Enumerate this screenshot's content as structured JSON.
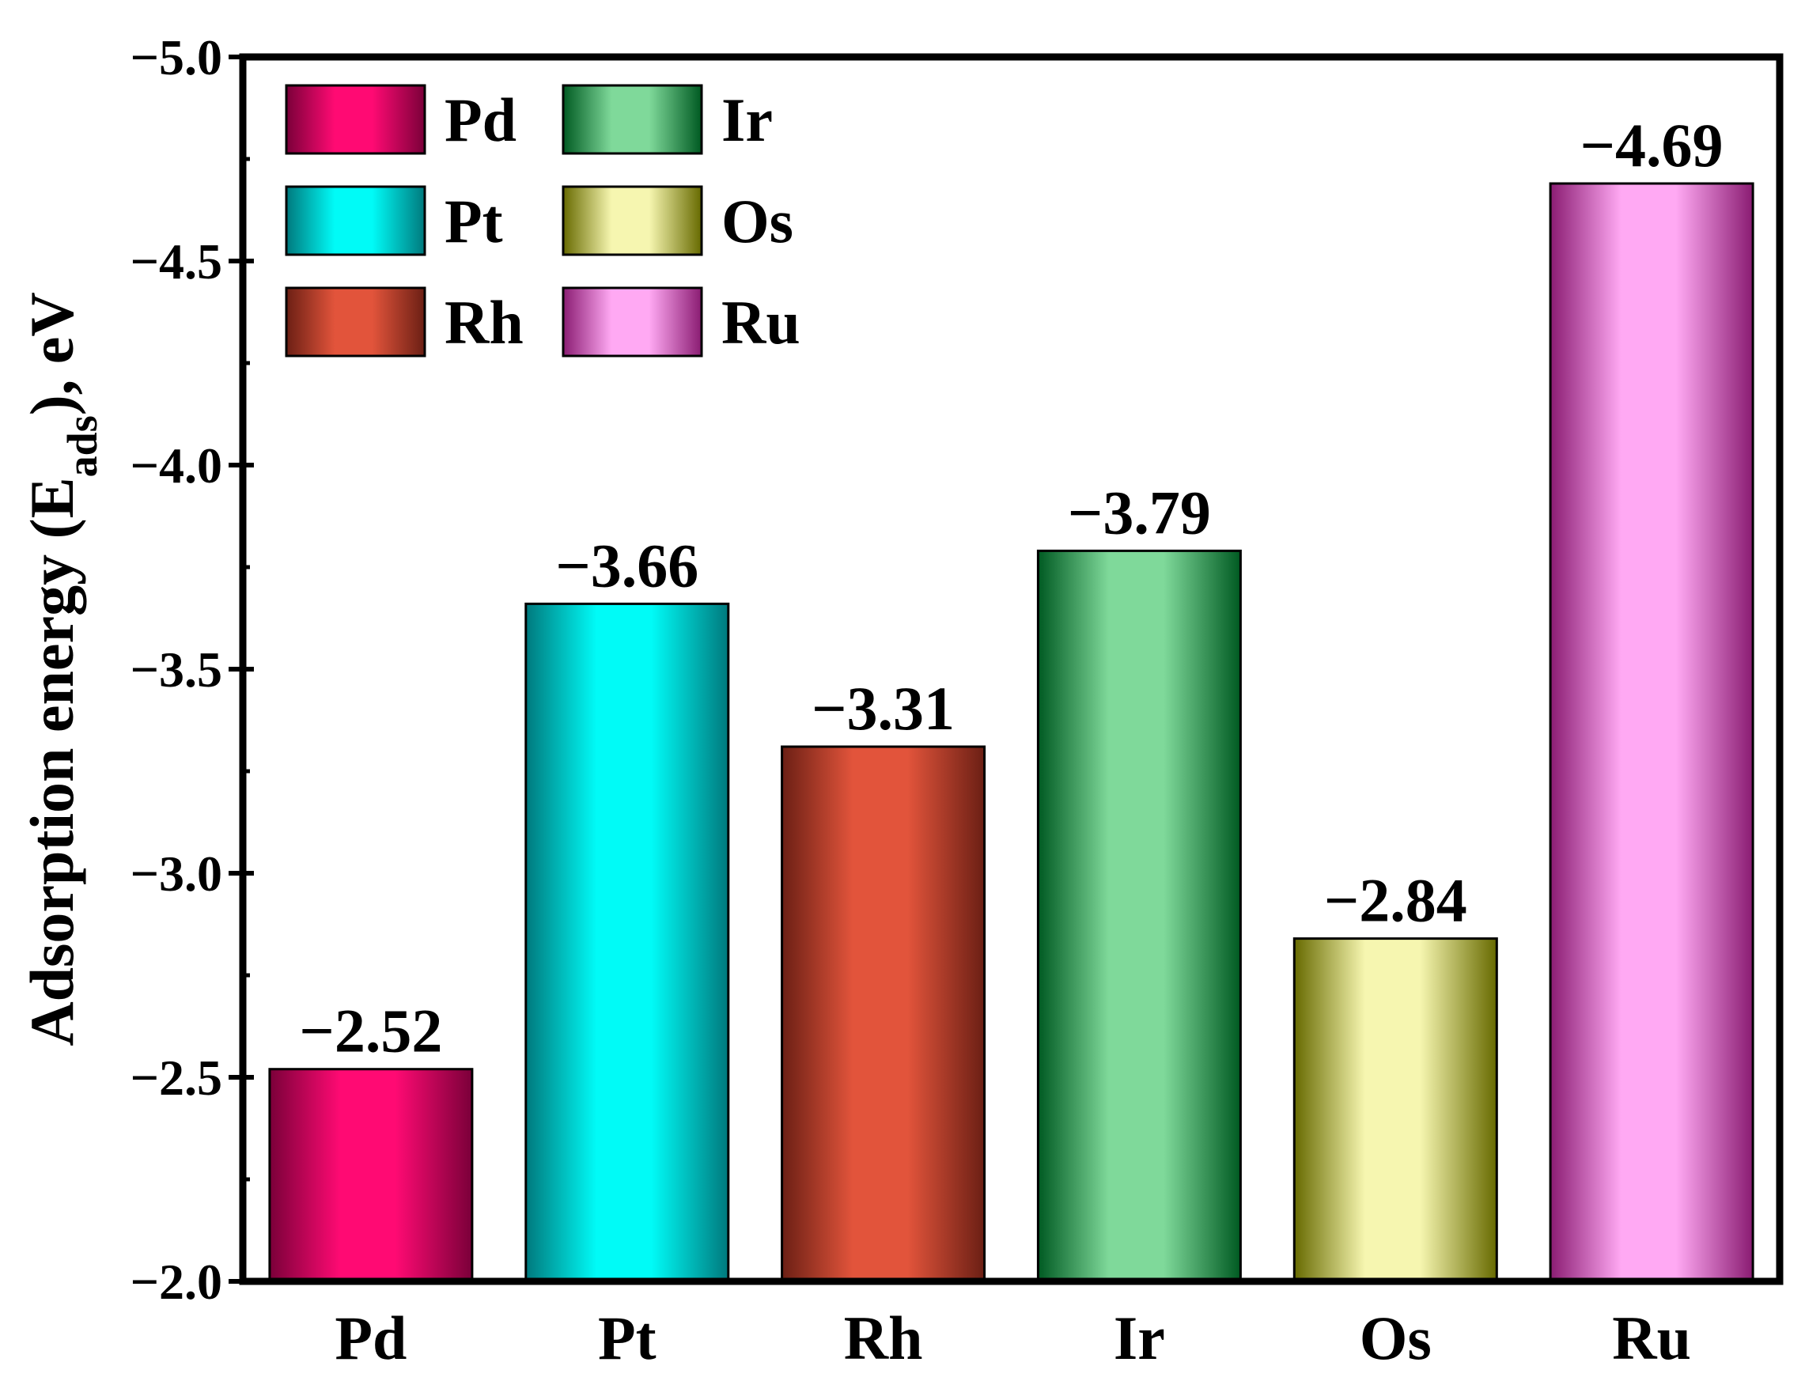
{
  "chart_data": {
    "type": "bar",
    "title": "",
    "xlabel": "",
    "ylabel": {
      "prefix": "Adsorption energy (E",
      "subscript": "ads",
      "suffix": "), eV"
    },
    "y_axis": {
      "range": [
        -2.0,
        -5.0
      ],
      "direction": "inverted (more negative values upward)",
      "major_ticks": [
        -2.0,
        -2.5,
        -3.0,
        -3.5,
        -4.0,
        -4.5,
        -5.0
      ],
      "tick_labels": [
        "−2.0",
        "−2.5",
        "−3.0",
        "−3.5",
        "−4.0",
        "−4.5",
        "−5.0"
      ],
      "minor_ticks": [
        -2.25,
        -2.75,
        -3.25,
        -3.75,
        -4.25,
        -4.75
      ]
    },
    "categories": [
      "Pd",
      "Pt",
      "Rh",
      "Ir",
      "Os",
      "Ru"
    ],
    "values": [
      -2.52,
      -3.66,
      -3.31,
      -3.79,
      -2.84,
      -4.69
    ],
    "value_labels": [
      "−2.52",
      "−3.66",
      "−3.31",
      "−3.79",
      "−2.84",
      "−4.69"
    ],
    "bar_colors": [
      {
        "category": "Pd",
        "edge": "#7a0039",
        "center": "#ff0a73"
      },
      {
        "category": "Pt",
        "edge": "#00797d",
        "center": "#00fbf7"
      },
      {
        "category": "Rh",
        "edge": "#6b1f14",
        "center": "#e2543b"
      },
      {
        "category": "Ir",
        "edge": "#005a22",
        "center": "#7fd99a"
      },
      {
        "category": "Os",
        "edge": "#676a00",
        "center": "#f6f6b0"
      },
      {
        "category": "Ru",
        "edge": "#8a1c72",
        "center": "#ffa9f3"
      }
    ],
    "legend": {
      "placement": "top-left",
      "columns": 2,
      "entries": [
        "Pd",
        "Ir",
        "Pt",
        "Os",
        "Rh",
        "Ru"
      ]
    },
    "grid": false
  }
}
